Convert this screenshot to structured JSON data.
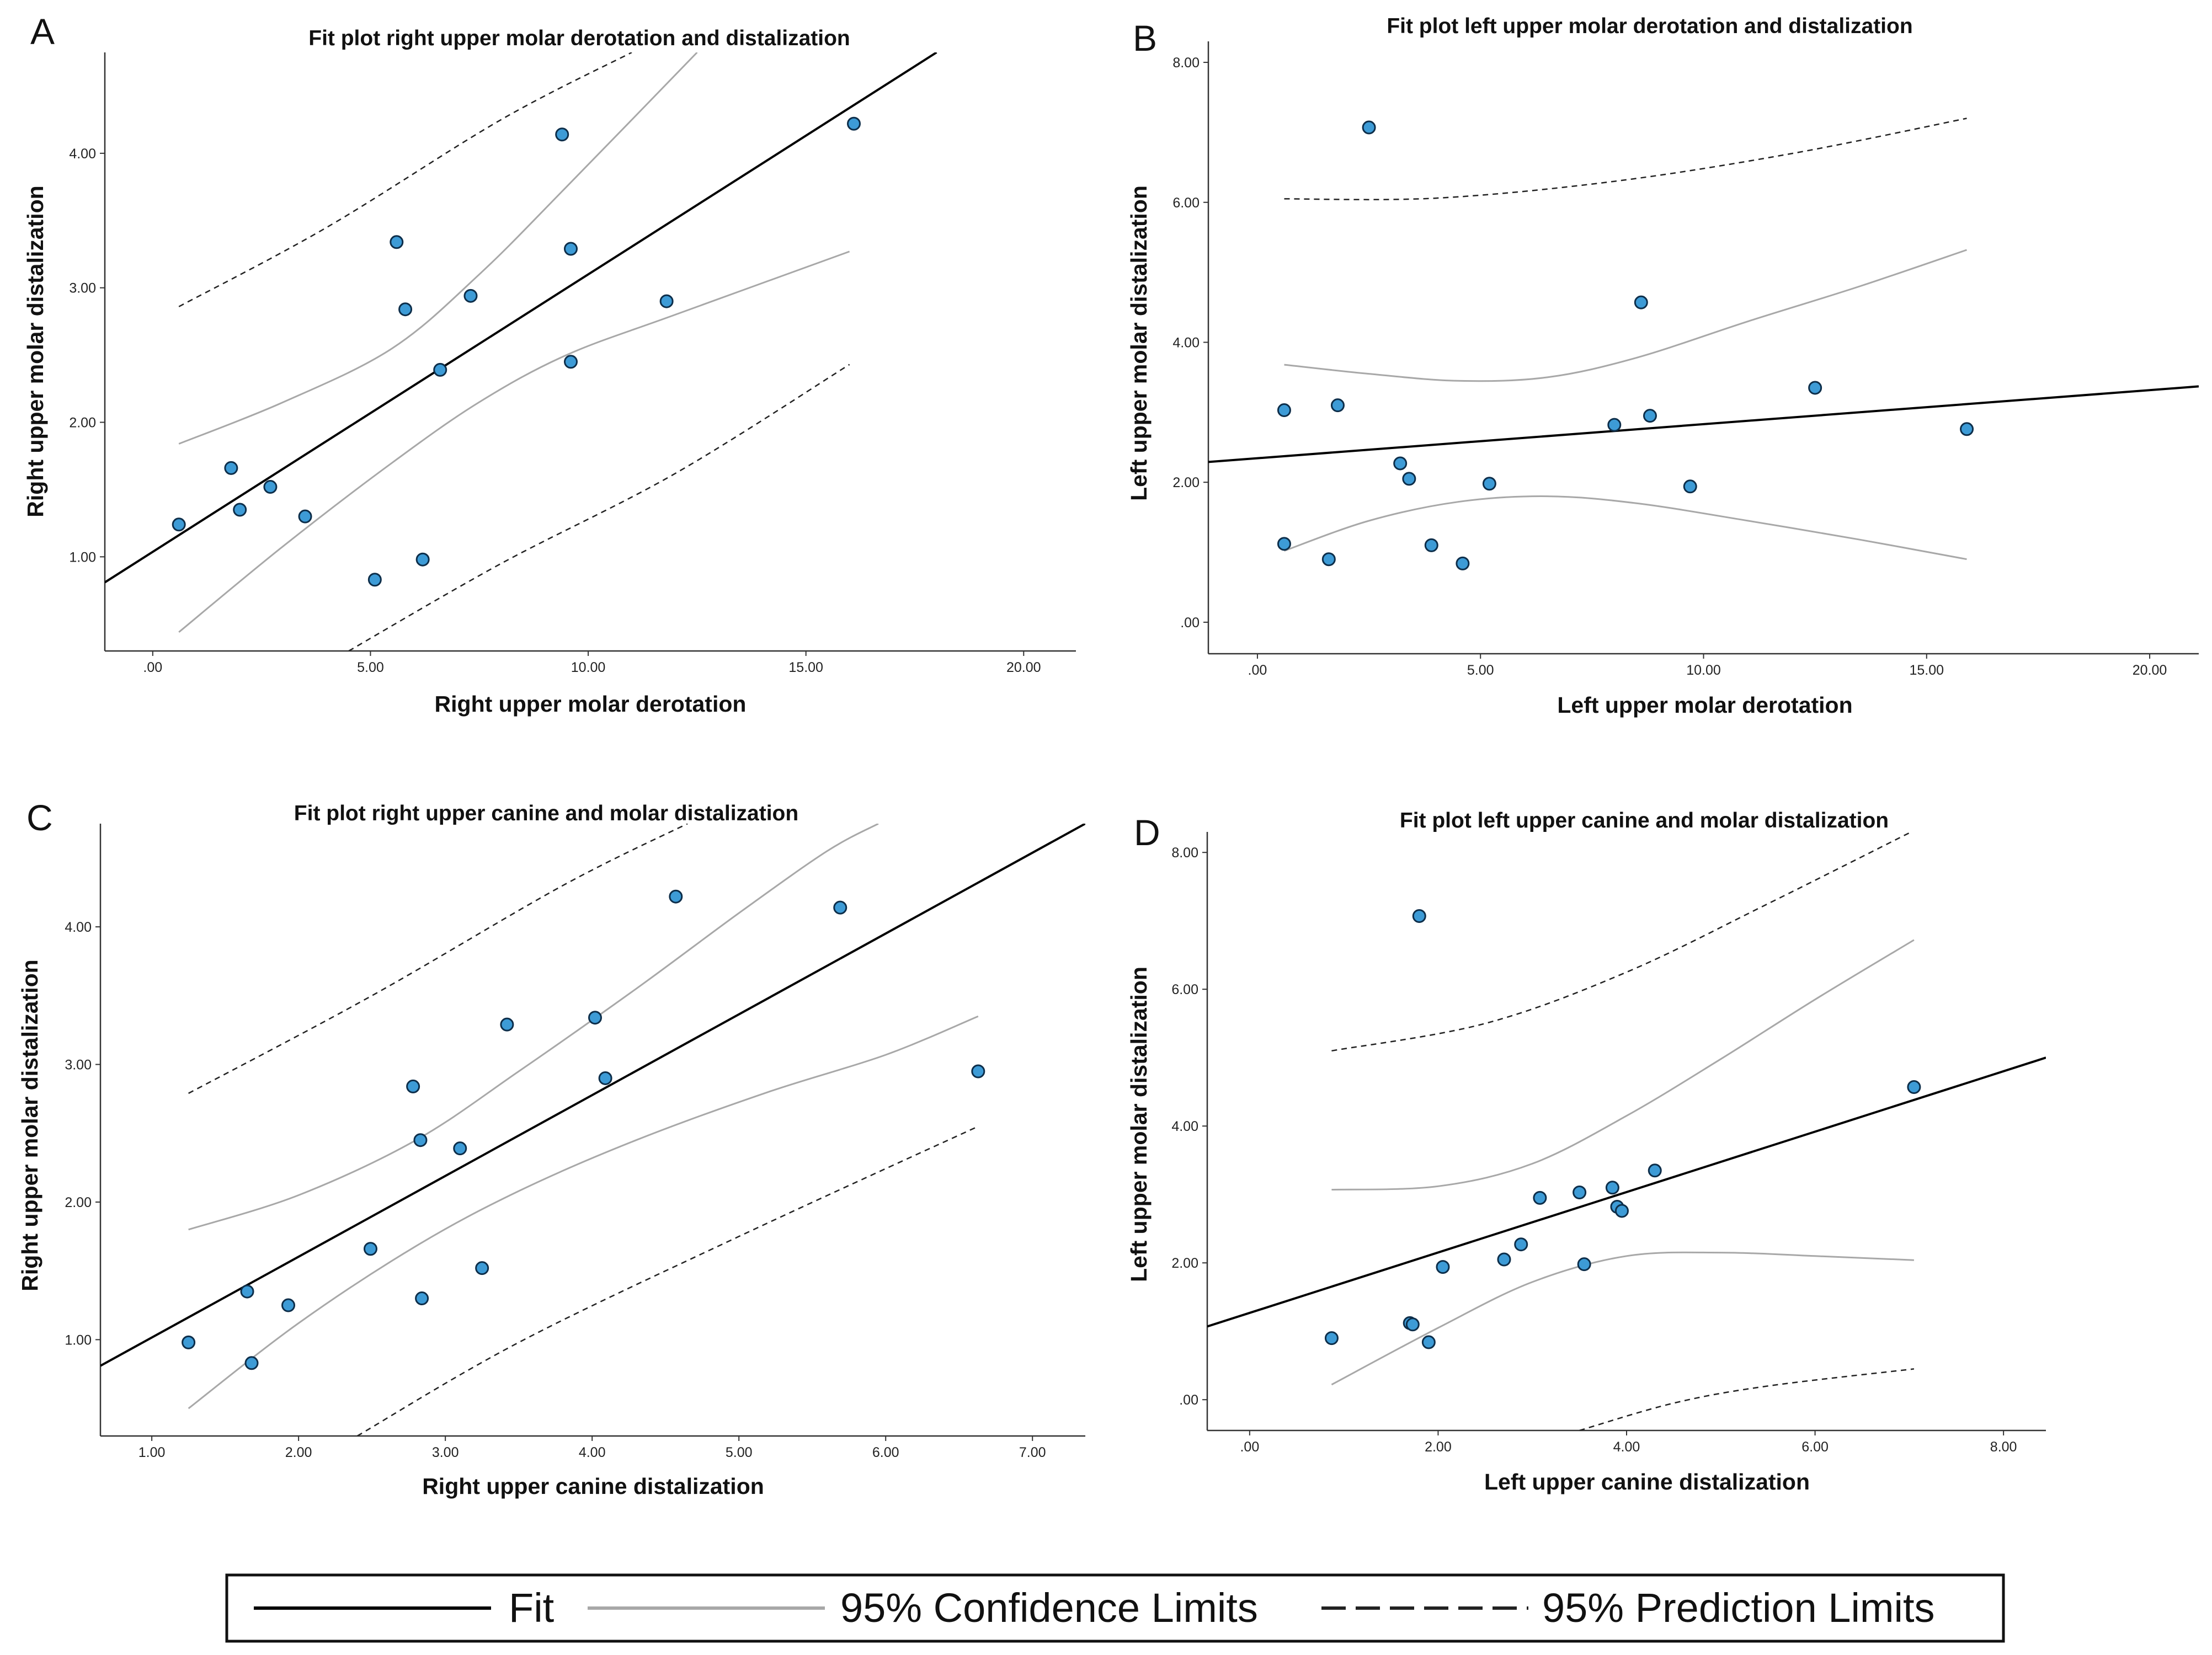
{
  "legend": {
    "fit_label": "Fit",
    "confidence_label": "95% Confidence Limits",
    "prediction_label": "95% Prediction Limits"
  },
  "colors": {
    "point_fill": "#3d9bd6",
    "point_stroke": "#0d2e4a",
    "fit_line": "#000000",
    "confidence_line": "#a8a8a8",
    "prediction_line": "#222222"
  },
  "chart_data": [
    {
      "panel": "A",
      "type": "scatter",
      "title": "Fit plot right upper molar derotation and distalization",
      "xlabel": "Right upper molar derotation",
      "ylabel": "Right upper molar distalization",
      "xlim": [
        -1.1,
        21.2
      ],
      "ylim": [
        0.3,
        4.75
      ],
      "xticks": [
        0,
        5,
        10,
        15,
        20
      ],
      "xtick_labels": [
        ".00",
        "5.00",
        "10.00",
        "15.00",
        "20.00"
      ],
      "yticks": [
        1,
        2,
        3,
        4
      ],
      "ytick_labels": [
        "1.00",
        "2.00",
        "3.00",
        "4.00"
      ],
      "points": [
        [
          0.6,
          1.24
        ],
        [
          1.8,
          1.66
        ],
        [
          2.0,
          1.35
        ],
        [
          2.7,
          1.52
        ],
        [
          3.5,
          1.3
        ],
        [
          5.1,
          0.83
        ],
        [
          5.6,
          3.34
        ],
        [
          5.8,
          2.84
        ],
        [
          6.2,
          0.98
        ],
        [
          6.6,
          2.39
        ],
        [
          7.3,
          2.94
        ],
        [
          9.4,
          4.14
        ],
        [
          9.6,
          3.29
        ],
        [
          9.6,
          2.45
        ],
        [
          11.8,
          2.9
        ],
        [
          16.1,
          4.22
        ]
      ],
      "fit": [
        [
          -1.1,
          0.81
        ],
        [
          18.0,
          4.75
        ]
      ],
      "confidence_upper": [
        [
          0.6,
          1.84
        ],
        [
          3.0,
          2.15
        ],
        [
          5.5,
          2.55
        ],
        [
          7.5,
          3.1
        ],
        [
          9.5,
          3.75
        ],
        [
          12.5,
          4.75
        ]
      ],
      "confidence_lower": [
        [
          0.6,
          0.44
        ],
        [
          3.0,
          1.08
        ],
        [
          5.5,
          1.7
        ],
        [
          7.5,
          2.15
        ],
        [
          9.5,
          2.5
        ],
        [
          12.0,
          2.8
        ],
        [
          16.0,
          3.27
        ]
      ],
      "prediction_upper": [
        [
          0.6,
          2.86
        ],
        [
          4.0,
          3.45
        ],
        [
          8.0,
          4.25
        ],
        [
          11.0,
          4.75
        ]
      ],
      "prediction_lower": [
        [
          4.5,
          0.3
        ],
        [
          8.0,
          0.95
        ],
        [
          12.0,
          1.62
        ],
        [
          16.0,
          2.43
        ]
      ]
    },
    {
      "panel": "B",
      "type": "scatter",
      "title": "Fit plot left upper molar derotation and distalization",
      "xlabel": "Left upper molar derotation",
      "ylabel": "Left upper molar distalization",
      "xlim": [
        -1.1,
        21.1
      ],
      "ylim": [
        -0.45,
        8.3
      ],
      "xticks": [
        0,
        5,
        10,
        15,
        20
      ],
      "xtick_labels": [
        ".00",
        "5.00",
        "10.00",
        "15.00",
        "20.00"
      ],
      "yticks": [
        0,
        2,
        4,
        6,
        8
      ],
      "ytick_labels": [
        ".00",
        "2.00",
        "4.00",
        "6.00",
        "8.00"
      ],
      "points": [
        [
          0.6,
          3.03
        ],
        [
          0.6,
          1.12
        ],
        [
          1.6,
          0.9
        ],
        [
          1.8,
          3.1
        ],
        [
          2.5,
          7.07
        ],
        [
          3.2,
          2.27
        ],
        [
          3.4,
          2.05
        ],
        [
          3.9,
          1.1
        ],
        [
          4.6,
          0.84
        ],
        [
          5.2,
          1.98
        ],
        [
          8.0,
          2.82
        ],
        [
          8.6,
          4.57
        ],
        [
          8.8,
          2.95
        ],
        [
          9.7,
          1.94
        ],
        [
          12.5,
          3.35
        ],
        [
          15.9,
          2.76
        ]
      ],
      "fit": [
        [
          -1.1,
          2.29
        ],
        [
          21.1,
          3.37
        ]
      ],
      "confidence_upper": [
        [
          0.6,
          3.68
        ],
        [
          2.5,
          3.55
        ],
        [
          4.5,
          3.45
        ],
        [
          6.5,
          3.5
        ],
        [
          8.5,
          3.78
        ],
        [
          11.0,
          4.3
        ],
        [
          13.5,
          4.8
        ],
        [
          15.9,
          5.32
        ]
      ],
      "confidence_lower": [
        [
          0.6,
          1.02
        ],
        [
          2.5,
          1.45
        ],
        [
          4.5,
          1.72
        ],
        [
          6.5,
          1.8
        ],
        [
          8.5,
          1.7
        ],
        [
          11.0,
          1.45
        ],
        [
          13.5,
          1.18
        ],
        [
          15.9,
          0.9
        ]
      ],
      "prediction_upper": [
        [
          0.6,
          6.05
        ],
        [
          4.0,
          6.06
        ],
        [
          8.0,
          6.3
        ],
        [
          12.0,
          6.7
        ],
        [
          15.9,
          7.2
        ]
      ],
      "prediction_lower": []
    },
    {
      "panel": "C",
      "type": "scatter",
      "title": "Fit plot right upper canine and molar distalization",
      "xlabel": "Right upper canine distalization",
      "ylabel": "Right upper molar distalization",
      "xlim": [
        0.65,
        7.36
      ],
      "ylim": [
        0.3,
        4.75
      ],
      "xticks": [
        1,
        2,
        3,
        4,
        5,
        6,
        7
      ],
      "xtick_labels": [
        "1.00",
        "2.00",
        "3.00",
        "4.00",
        "5.00",
        "6.00",
        "7.00"
      ],
      "yticks": [
        1,
        2,
        3,
        4
      ],
      "ytick_labels": [
        "1.00",
        "2.00",
        "3.00",
        "4.00"
      ],
      "points": [
        [
          1.25,
          0.98
        ],
        [
          1.65,
          1.35
        ],
        [
          1.68,
          0.83
        ],
        [
          1.93,
          1.25
        ],
        [
          2.49,
          1.66
        ],
        [
          2.78,
          2.84
        ],
        [
          2.83,
          2.45
        ],
        [
          2.84,
          1.3
        ],
        [
          3.1,
          2.39
        ],
        [
          3.25,
          1.52
        ],
        [
          3.42,
          3.29
        ],
        [
          4.02,
          3.34
        ],
        [
          4.09,
          2.9
        ],
        [
          4.57,
          4.22
        ],
        [
          5.69,
          4.14
        ],
        [
          6.63,
          2.95
        ]
      ],
      "fit": [
        [
          0.65,
          0.81
        ],
        [
          7.36,
          4.75
        ]
      ],
      "confidence_upper": [
        [
          1.25,
          1.8
        ],
        [
          2.0,
          2.05
        ],
        [
          2.8,
          2.45
        ],
        [
          3.5,
          2.95
        ],
        [
          4.3,
          3.55
        ],
        [
          5.0,
          4.1
        ],
        [
          5.6,
          4.55
        ],
        [
          5.95,
          4.75
        ]
      ],
      "confidence_lower": [
        [
          1.25,
          0.5
        ],
        [
          2.0,
          1.12
        ],
        [
          2.8,
          1.68
        ],
        [
          3.5,
          2.08
        ],
        [
          4.3,
          2.45
        ],
        [
          5.2,
          2.8
        ],
        [
          6.0,
          3.07
        ],
        [
          6.63,
          3.35
        ]
      ],
      "prediction_upper": [
        [
          1.25,
          2.79
        ],
        [
          2.5,
          3.5
        ],
        [
          3.8,
          4.3
        ],
        [
          4.65,
          4.75
        ]
      ],
      "prediction_lower": [
        [
          2.4,
          0.3
        ],
        [
          3.5,
          0.98
        ],
        [
          5.0,
          1.75
        ],
        [
          6.63,
          2.55
        ]
      ]
    },
    {
      "panel": "D",
      "type": "scatter",
      "title": "Fit plot left upper canine and molar distalization",
      "xlabel": "Left upper canine distalization",
      "ylabel": "Left upper molar distalization",
      "xlim": [
        -0.45,
        8.45
      ],
      "ylim": [
        -0.45,
        8.3
      ],
      "xticks": [
        0,
        2,
        4,
        6,
        8
      ],
      "xtick_labels": [
        ".00",
        "2.00",
        "4.00",
        "6.00",
        "8.00"
      ],
      "yticks": [
        0,
        2,
        4,
        6,
        8
      ],
      "ytick_labels": [
        ".00",
        "2.00",
        "4.00",
        "6.00",
        "8.00"
      ],
      "points": [
        [
          0.87,
          0.9
        ],
        [
          1.7,
          1.12
        ],
        [
          1.73,
          1.1
        ],
        [
          1.8,
          7.07
        ],
        [
          1.9,
          0.84
        ],
        [
          2.05,
          1.94
        ],
        [
          2.7,
          2.05
        ],
        [
          2.88,
          2.27
        ],
        [
          3.08,
          2.95
        ],
        [
          3.5,
          3.03
        ],
        [
          3.55,
          1.98
        ],
        [
          3.85,
          3.1
        ],
        [
          3.9,
          2.82
        ],
        [
          3.95,
          2.76
        ],
        [
          4.3,
          3.35
        ],
        [
          7.05,
          4.57
        ]
      ],
      "fit": [
        [
          -0.45,
          1.07
        ],
        [
          8.45,
          5.0
        ]
      ],
      "confidence_upper": [
        [
          0.87,
          3.07
        ],
        [
          2.0,
          3.12
        ],
        [
          3.0,
          3.45
        ],
        [
          4.0,
          4.15
        ],
        [
          5.0,
          4.98
        ],
        [
          6.0,
          5.85
        ],
        [
          7.05,
          6.72
        ]
      ],
      "confidence_lower": [
        [
          0.87,
          0.22
        ],
        [
          2.0,
          1.05
        ],
        [
          3.0,
          1.72
        ],
        [
          4.0,
          2.1
        ],
        [
          5.0,
          2.15
        ],
        [
          6.0,
          2.1
        ],
        [
          7.05,
          2.04
        ]
      ],
      "prediction_upper": [
        [
          0.87,
          5.1
        ],
        [
          2.5,
          5.5
        ],
        [
          4.0,
          6.25
        ],
        [
          5.5,
          7.25
        ],
        [
          7.05,
          8.32
        ]
      ],
      "prediction_lower": [
        [
          3.5,
          -0.45
        ],
        [
          4.5,
          -0.05
        ],
        [
          5.5,
          0.2
        ],
        [
          7.05,
          0.45
        ]
      ]
    }
  ]
}
